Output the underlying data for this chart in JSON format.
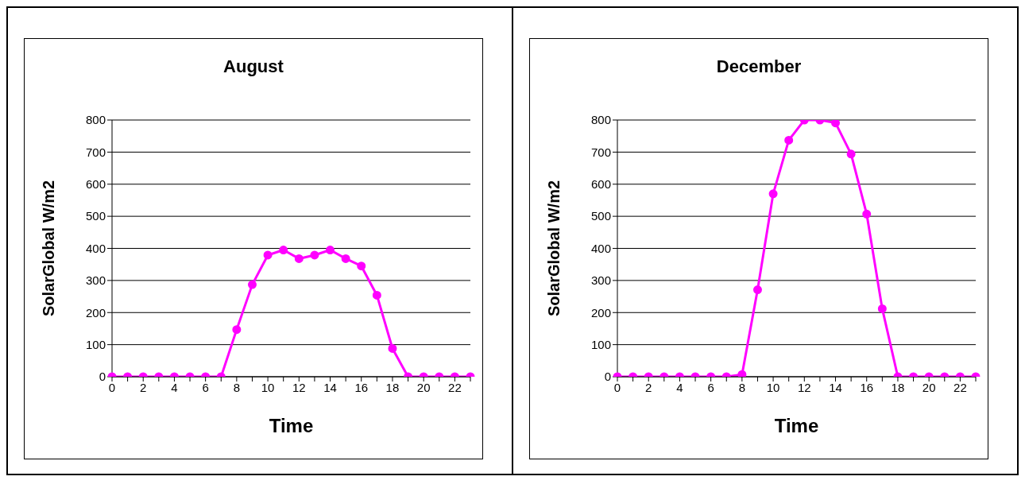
{
  "chart_data": [
    {
      "type": "line",
      "title": "August",
      "xlabel": "Time",
      "ylabel": "SolarGlobal   W/m2",
      "categories": [
        "0",
        null,
        "2",
        null,
        "4",
        null,
        "6",
        null,
        "8",
        null,
        "10",
        null,
        "12",
        null,
        "14",
        null,
        "16",
        null,
        "18",
        null,
        "20",
        null,
        "22",
        null
      ],
      "series": [
        {
          "color": "#ff00ff",
          "values": [
            0,
            0,
            0,
            0,
            0,
            0,
            0,
            0,
            147,
            287,
            379,
            395,
            368,
            379,
            395,
            368,
            345,
            254,
            88,
            0,
            0,
            0,
            0,
            0
          ]
        }
      ],
      "ylim": [
        0,
        800
      ],
      "yticks": [
        0,
        100,
        200,
        300,
        400,
        500,
        600,
        700,
        800
      ],
      "grid": "y",
      "marker": "circle"
    },
    {
      "type": "line",
      "title": "December",
      "xlabel": "Time",
      "ylabel": "SolarGlobal   W/m2",
      "categories": [
        "0",
        null,
        "2",
        null,
        "4",
        null,
        "6",
        null,
        "8",
        null,
        "10",
        null,
        "12",
        null,
        "14",
        null,
        "16",
        null,
        "18",
        null,
        "20",
        null,
        "22",
        null
      ],
      "series": [
        {
          "color": "#ff00ff",
          "values": [
            0,
            0,
            0,
            0,
            0,
            0,
            0,
            0,
            7,
            271,
            570,
            737,
            800,
            800,
            791,
            694,
            507,
            212,
            0,
            0,
            0,
            0,
            0,
            0
          ]
        }
      ],
      "ylim": [
        0,
        800
      ],
      "yticks": [
        0,
        100,
        200,
        300,
        400,
        500,
        600,
        700,
        800
      ],
      "grid": "y",
      "marker": "circle"
    }
  ]
}
